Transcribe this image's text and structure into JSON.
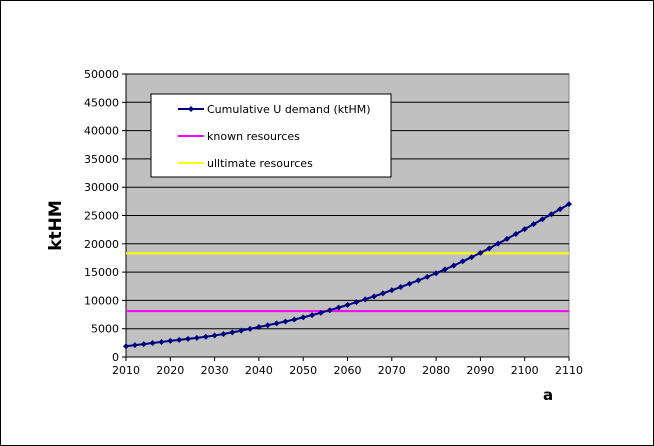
{
  "chart_data": {
    "type": "line",
    "xlabel": "a",
    "ylabel": "ktHM",
    "xlim": [
      2010,
      2110
    ],
    "ylim": [
      0,
      50000
    ],
    "x_ticks": [
      2010,
      2020,
      2030,
      2040,
      2050,
      2060,
      2070,
      2080,
      2090,
      2100,
      2110
    ],
    "y_ticks": [
      0,
      5000,
      10000,
      15000,
      20000,
      25000,
      30000,
      35000,
      40000,
      45000,
      50000
    ],
    "grid": true,
    "plot_background": "#c0c0c0",
    "legend_position": "top-left",
    "series": [
      {
        "name": "Cumulative U demand (ktHM)",
        "color": "#00007f",
        "marker": "diamond",
        "x": [
          2010,
          2020,
          2030,
          2040,
          2050,
          2060,
          2070,
          2080,
          2090,
          2100,
          2110
        ],
        "y": [
          1900,
          2850,
          3800,
          5300,
          7000,
          9200,
          11800,
          14800,
          18400,
          22600,
          27000
        ]
      },
      {
        "name": "known resources",
        "color": "#ff00ff",
        "x": [
          2010,
          2110
        ],
        "y": [
          8100,
          8100
        ]
      },
      {
        "name": "ulltimate resources",
        "color": "#ffff00",
        "x": [
          2010,
          2110
        ],
        "y": [
          18300,
          18300
        ]
      }
    ]
  }
}
